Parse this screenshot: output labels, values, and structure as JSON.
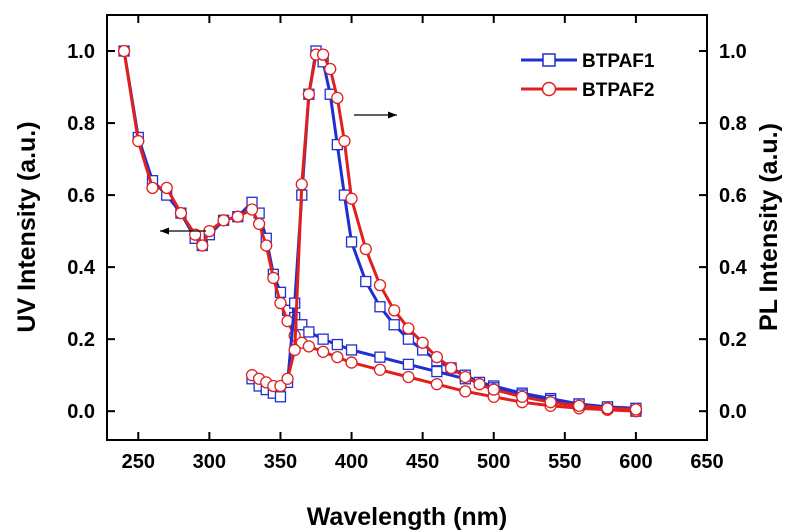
{
  "chart_data": {
    "type": "line",
    "title": "",
    "xlabel": "Wavelength (nm)",
    "ylabel_left": "UV Intensity (a.u.)",
    "ylabel_right": "PL Intensity (a.u.)",
    "xlim": [
      228,
      650
    ],
    "ylim": [
      -0.08,
      1.1
    ],
    "x_ticks": [
      250,
      300,
      350,
      400,
      450,
      500,
      550,
      600,
      650
    ],
    "y_ticks": [
      0.0,
      0.2,
      0.4,
      0.6,
      0.8,
      1.0
    ],
    "x_tick_labels": [
      "250",
      "300",
      "350",
      "400",
      "450",
      "500",
      "550",
      "600",
      "650"
    ],
    "y_tick_labels": [
      "0.0",
      "0.2",
      "0.4",
      "0.6",
      "0.8",
      "1.0"
    ],
    "grid": false,
    "legend_position": "top-right",
    "colors": {
      "BTPAF1": "#1f2fd0",
      "BTPAF2": "#e01f1f"
    },
    "series": [
      {
        "name": "BTPAF1",
        "marker": "square",
        "group": "UV",
        "x": [
          240,
          250,
          260,
          270,
          280,
          290,
          295,
          300,
          310,
          320,
          330,
          335,
          340,
          345,
          350,
          355,
          360,
          365,
          370,
          380,
          390,
          400,
          420,
          440,
          460,
          480,
          500,
          520,
          540,
          560,
          580,
          600
        ],
        "y": [
          1.0,
          0.76,
          0.64,
          0.6,
          0.55,
          0.48,
          0.46,
          0.49,
          0.53,
          0.54,
          0.58,
          0.55,
          0.48,
          0.38,
          0.33,
          0.28,
          0.26,
          0.24,
          0.22,
          0.2,
          0.185,
          0.17,
          0.15,
          0.13,
          0.11,
          0.09,
          0.07,
          0.05,
          0.035,
          0.02,
          0.01,
          0.0
        ]
      },
      {
        "name": "BTPAF2",
        "marker": "circle",
        "group": "UV",
        "x": [
          240,
          250,
          260,
          270,
          280,
          290,
          295,
          300,
          310,
          320,
          330,
          335,
          340,
          345,
          350,
          355,
          360,
          365,
          370,
          380,
          390,
          400,
          420,
          440,
          460,
          480,
          500,
          520,
          540,
          560,
          580,
          600
        ],
        "y": [
          1.0,
          0.75,
          0.62,
          0.62,
          0.55,
          0.49,
          0.46,
          0.5,
          0.53,
          0.54,
          0.56,
          0.52,
          0.46,
          0.37,
          0.3,
          0.25,
          0.21,
          0.19,
          0.18,
          0.165,
          0.15,
          0.135,
          0.115,
          0.095,
          0.075,
          0.055,
          0.04,
          0.025,
          0.015,
          0.008,
          0.004,
          0.0
        ]
      },
      {
        "name": "BTPAF1",
        "marker": "square",
        "group": "PL",
        "x": [
          330,
          335,
          340,
          345,
          350,
          355,
          360,
          365,
          370,
          375,
          380,
          385,
          390,
          395,
          400,
          410,
          420,
          430,
          440,
          450,
          460,
          470,
          480,
          490,
          500,
          520,
          540,
          560,
          580,
          600
        ],
        "y": [
          0.09,
          0.07,
          0.06,
          0.05,
          0.04,
          0.08,
          0.3,
          0.6,
          0.88,
          1.0,
          0.97,
          0.88,
          0.74,
          0.6,
          0.47,
          0.36,
          0.29,
          0.24,
          0.2,
          0.17,
          0.14,
          0.12,
          0.1,
          0.08,
          0.065,
          0.045,
          0.03,
          0.02,
          0.012,
          0.008
        ]
      },
      {
        "name": "BTPAF2",
        "marker": "circle",
        "group": "PL",
        "x": [
          330,
          335,
          340,
          345,
          350,
          355,
          360,
          365,
          370,
          375,
          380,
          385,
          390,
          395,
          400,
          410,
          420,
          430,
          440,
          450,
          460,
          470,
          480,
          490,
          500,
          520,
          540,
          560,
          580,
          600
        ],
        "y": [
          0.1,
          0.09,
          0.08,
          0.07,
          0.07,
          0.09,
          0.17,
          0.63,
          0.88,
          0.99,
          0.99,
          0.95,
          0.87,
          0.75,
          0.59,
          0.45,
          0.35,
          0.28,
          0.23,
          0.19,
          0.15,
          0.12,
          0.095,
          0.075,
          0.06,
          0.04,
          0.025,
          0.015,
          0.008,
          0.005
        ]
      }
    ]
  }
}
